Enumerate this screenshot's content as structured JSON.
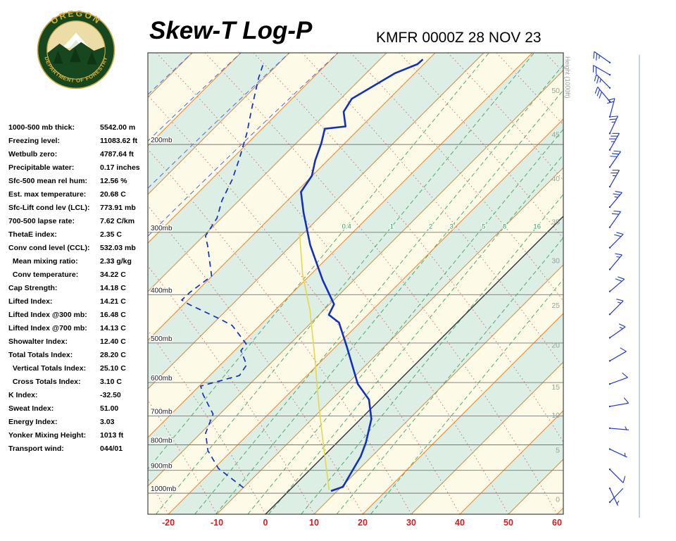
{
  "header": {
    "title": "Skew-T Log-P",
    "station": "KMFR 0000Z 28 NOV 23"
  },
  "logo": {
    "top_text": "OREGON",
    "bottom_text": "DEPARTMENT OF FORESTRY"
  },
  "indices": [
    {
      "label": "1000-500 mb thick:",
      "value": "5542.00 m"
    },
    {
      "label": "Freezing level:",
      "value": "11083.62 ft"
    },
    {
      "label": "Wetbulb zero:",
      "value": "4787.64 ft"
    },
    {
      "label": "Precipitable water:",
      "value": "0.17 inches"
    },
    {
      "label": "Sfc-500 mean rel hum:",
      "value": "12.56 %"
    },
    {
      "label": "Est. max temperature:",
      "value": "20.68 C"
    },
    {
      "label": "Sfc-Lift cond lev (LCL):",
      "value": "773.91 mb"
    },
    {
      "label": "700-500 lapse rate:",
      "value": "7.62 C/km"
    },
    {
      "label": "ThetaE index:",
      "value": "2.35 C"
    },
    {
      "label": "Conv cond level (CCL):",
      "value": "532.03 mb"
    },
    {
      "label": "  Mean mixing ratio:",
      "value": "2.33 g/kg"
    },
    {
      "label": "  Conv temperature:",
      "value": "34.22 C"
    },
    {
      "label": "Cap Strength:",
      "value": "14.18 C"
    },
    {
      "label": "Lifted Index:",
      "value": "14.21 C"
    },
    {
      "label": "Lifted Index @300 mb:",
      "value": "16.48 C"
    },
    {
      "label": "Lifted Index @700 mb:",
      "value": "14.13 C"
    },
    {
      "label": "Showalter Index:",
      "value": "12.40 C"
    },
    {
      "label": "Total Totals Index:",
      "value": "28.20 C"
    },
    {
      "label": "  Vertical Totals Index:",
      "value": "25.10 C"
    },
    {
      "label": "  Cross Totals Index:",
      "value": "3.10 C"
    },
    {
      "label": "K Index:",
      "value": "-32.50"
    },
    {
      "label": "Sweat Index:",
      "value": "51.00"
    },
    {
      "label": "Energy Index:",
      "value": "3.03"
    },
    {
      "label": "Yonker Mixing Height:",
      "value": "1013 ft"
    },
    {
      "label": "Transport wind:",
      "value": "044/01"
    }
  ],
  "chart_data": {
    "type": "skewt_log_p",
    "title": "Skew-T Log-P",
    "station": "KMFR 0000Z 28 NOV 23",
    "pressure_axis_mb": [
      200,
      300,
      400,
      500,
      600,
      700,
      800,
      900,
      1000
    ],
    "pressure_label_suffix": "mb",
    "temp_axis_c": [
      -20,
      -10,
      0,
      10,
      20,
      30,
      40,
      50,
      60
    ],
    "temp_axis_range": [
      -20,
      60
    ],
    "height_axis_title": "Height (1000ft)",
    "height_labels": [
      {
        "kft": "50",
        "p": 156
      },
      {
        "kft": "45",
        "p": 191
      },
      {
        "kft": "40",
        "p": 234
      },
      {
        "kft": "35",
        "p": 286
      },
      {
        "kft": "30",
        "p": 342
      },
      {
        "kft": "25",
        "p": 420
      },
      {
        "kft": "20",
        "p": 505
      },
      {
        "kft": "15",
        "p": 613
      },
      {
        "kft": "10",
        "p": 698
      },
      {
        "kft": "5",
        "p": 820
      },
      {
        "kft": "0",
        "p": 1030
      }
    ],
    "mixing_ratio_lines": [
      {
        "label": "0.4",
        "t_at_292mb": -42.5
      },
      {
        "label": "1",
        "t_at_292mb": -33.2
      },
      {
        "label": "2",
        "t_at_292mb": -25.2
      },
      {
        "label": "3",
        "t_at_292mb": -20.9
      },
      {
        "label": "5",
        "t_at_292mb": -14.3
      },
      {
        "label": "8",
        "t_at_292mb": -10.0
      },
      {
        "label": "16",
        "t_at_292mb": -3.3
      },
      {
        "label": "",
        "t_at_292mb": 4.0
      },
      {
        "label": "",
        "t_at_292mb": 11.0
      }
    ],
    "temperature_profile_p_t": [
      [
        990,
        8.7
      ],
      [
        971,
        10.3
      ],
      [
        844,
        7.7
      ],
      [
        791,
        5.9
      ],
      [
        710,
        2.2
      ],
      [
        649,
        -2.3
      ],
      [
        604,
        -7.8
      ],
      [
        508,
        -17.8
      ],
      [
        455,
        -24.3
      ],
      [
        439,
        -28.0
      ],
      [
        418,
        -29.1
      ],
      [
        374,
        -36.4
      ],
      [
        318,
        -46.2
      ],
      [
        274,
        -54.2
      ],
      [
        249,
        -59.0
      ],
      [
        231,
        -60.1
      ],
      [
        215,
        -62.6
      ],
      [
        199,
        -64.8
      ],
      [
        186,
        -67.1
      ],
      [
        184,
        -63.3
      ],
      [
        172,
        -66.7
      ],
      [
        162,
        -67.7
      ],
      [
        144,
        -64.1
      ],
      [
        138,
        -61.3
      ],
      [
        135,
        -61.2
      ]
    ],
    "dewpoint_profile_p_t": [
      [
        975,
        -10.0
      ],
      [
        892,
        -19.1
      ],
      [
        822,
        -24.9
      ],
      [
        758,
        -29.0
      ],
      [
        694,
        -31.4
      ],
      [
        634,
        -37.5
      ],
      [
        610,
        -39.7
      ],
      [
        581,
        -33.9
      ],
      [
        553,
        -34.6
      ],
      [
        518,
        -38.7
      ],
      [
        502,
        -39.0
      ],
      [
        461,
        -45.7
      ],
      [
        446,
        -50.0
      ],
      [
        418,
        -59.0
      ],
      [
        410,
        -61.3
      ],
      [
        396,
        -61.2
      ],
      [
        367,
        -60.1
      ],
      [
        320,
        -67.0
      ],
      [
        305,
        -69.6
      ],
      [
        281,
        -70.9
      ],
      [
        259,
        -73.5
      ],
      [
        235,
        -75.7
      ],
      [
        213,
        -78.6
      ],
      [
        190,
        -82.2
      ],
      [
        167,
        -86.8
      ],
      [
        147,
        -91.2
      ],
      [
        137,
        -93.3
      ]
    ],
    "wetbulb_profile_p_t": [
      [
        985,
        8.1
      ],
      [
        822,
        -1.0
      ],
      [
        710,
        -8.3
      ],
      [
        613,
        -15.5
      ],
      [
        530,
        -22.5
      ],
      [
        473,
        -28.1
      ],
      [
        429,
        -32.9
      ],
      [
        365,
        -41.6
      ],
      [
        300,
        -51.0
      ]
    ],
    "wind_barbs": [
      {
        "p": 137,
        "dir_deg": 305,
        "spd_kt": 25
      },
      {
        "p": 145,
        "dir_deg": 300,
        "spd_kt": 20
      },
      {
        "p": 154,
        "dir_deg": 315,
        "spd_kt": 25
      },
      {
        "p": 164,
        "dir_deg": 320,
        "spd_kt": 30
      },
      {
        "p": 176,
        "dir_deg": 15,
        "spd_kt": 20
      },
      {
        "p": 190,
        "dir_deg": 25,
        "spd_kt": 25
      },
      {
        "p": 205,
        "dir_deg": 30,
        "spd_kt": 35
      },
      {
        "p": 222,
        "dir_deg": 35,
        "spd_kt": 30
      },
      {
        "p": 243,
        "dir_deg": 30,
        "spd_kt": 25
      },
      {
        "p": 267,
        "dir_deg": 40,
        "spd_kt": 25
      },
      {
        "p": 293,
        "dir_deg": 35,
        "spd_kt": 20
      },
      {
        "p": 322,
        "dir_deg": 45,
        "spd_kt": 20
      },
      {
        "p": 356,
        "dir_deg": 40,
        "spd_kt": 15
      },
      {
        "p": 394,
        "dir_deg": 50,
        "spd_kt": 20
      },
      {
        "p": 438,
        "dir_deg": 45,
        "spd_kt": 15
      },
      {
        "p": 488,
        "dir_deg": 55,
        "spd_kt": 15
      },
      {
        "p": 543,
        "dir_deg": 60,
        "spd_kt": 10
      },
      {
        "p": 604,
        "dir_deg": 70,
        "spd_kt": 10
      },
      {
        "p": 670,
        "dir_deg": 80,
        "spd_kt": 10
      },
      {
        "p": 741,
        "dir_deg": 95,
        "spd_kt": 5
      },
      {
        "p": 816,
        "dir_deg": 115,
        "spd_kt": 5
      },
      {
        "p": 896,
        "dir_deg": 135,
        "spd_kt": 10
      },
      {
        "p": 978,
        "dir_deg": 155,
        "spd_kt": 5
      },
      {
        "p": 1042,
        "dir_deg": 44,
        "spd_kt": 2
      }
    ],
    "colors": {
      "band_green": "#ddeee4",
      "band_cream": "#fdfbe7",
      "isotherm": "#e08a3c",
      "zero_isotherm": "#333333",
      "mixing": "#33a054",
      "adiabat": "#cc5555",
      "moist": "#5566cc",
      "temperature": "#1230c0",
      "dewpoint": "#1230c0",
      "wetbulb": "#e6d84a",
      "barb": "#2238cc",
      "temp_axis": "#cc2020",
      "pressure_label": "#222222",
      "height_label": "#96a396"
    }
  }
}
